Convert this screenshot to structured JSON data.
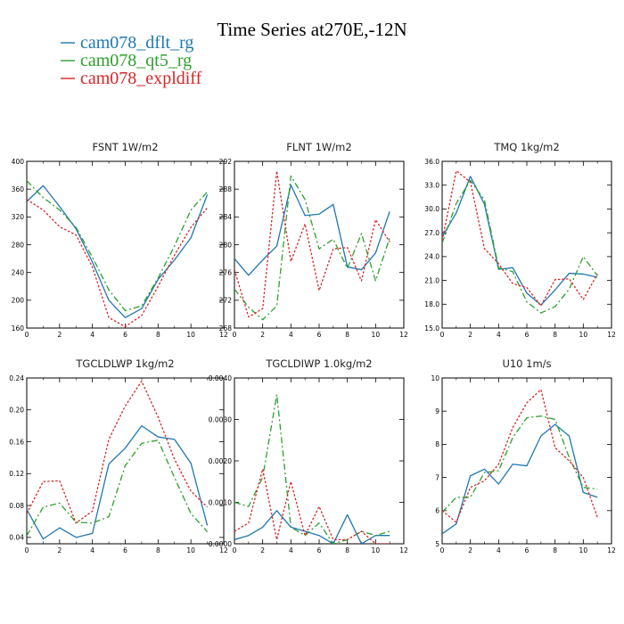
{
  "figure": {
    "title": "Time Series at270E,-12N",
    "legend": [
      {
        "name": "cam078_dflt_rg",
        "color": "#1f77b4",
        "dash": ""
      },
      {
        "name": "cam078_qt5_rg",
        "color": "#2ca02c",
        "dash": "7,3,2,3"
      },
      {
        "name": "cam078_expldiff",
        "color": "#d62728",
        "dash": "2.5,2"
      }
    ]
  },
  "chart_data": [
    {
      "type": "line",
      "title": "FSNT   1W/m2",
      "x": [
        0,
        1,
        2,
        3,
        4,
        5,
        6,
        7,
        8,
        9,
        10,
        11
      ],
      "xlim": [
        0,
        12
      ],
      "xticks": [
        0,
        2,
        4,
        6,
        8,
        10,
        12
      ],
      "ylim": [
        160,
        400
      ],
      "yticks": [
        160,
        200,
        240,
        280,
        320,
        360,
        400
      ],
      "ytick_labels": [
        "160",
        "200",
        "240",
        "280",
        "320",
        "360",
        "400"
      ],
      "series": [
        {
          "name": "cam078_dflt_rg",
          "values": [
            342,
            365,
            335,
            303,
            255,
            200,
            175,
            188,
            230,
            258,
            290,
            352
          ]
        },
        {
          "name": "cam078_qt5_rg",
          "values": [
            372,
            348,
            330,
            305,
            262,
            215,
            185,
            192,
            232,
            278,
            330,
            356
          ]
        },
        {
          "name": "cam078_expldiff",
          "values": [
            345,
            330,
            306,
            294,
            248,
            175,
            162,
            178,
            220,
            265,
            305,
            333
          ]
        }
      ]
    },
    {
      "type": "line",
      "title": "FLNT   1W/m2",
      "x": [
        0,
        1,
        2,
        3,
        4,
        5,
        6,
        7,
        8,
        9,
        10,
        11
      ],
      "xlim": [
        0,
        12
      ],
      "xticks": [
        0,
        2,
        4,
        6,
        8,
        10,
        12
      ],
      "ylim": [
        268,
        292
      ],
      "yticks": [
        268,
        272,
        276,
        280,
        284,
        288,
        292
      ],
      "ytick_labels": [
        "268",
        "272",
        "276",
        "280",
        "284",
        "288",
        "292"
      ],
      "series": [
        {
          "name": "cam078_dflt_rg",
          "values": [
            278,
            275.6,
            277.8,
            279.8,
            288.6,
            284.2,
            284.4,
            285.8,
            276.8,
            276.4,
            278.8,
            284.8
          ]
        },
        {
          "name": "cam078_qt5_rg",
          "values": [
            273.6,
            271,
            269.2,
            271.2,
            289.9,
            286.5,
            279.4,
            280.8,
            276.6,
            281.6,
            274.8,
            281
          ]
        },
        {
          "name": "cam078_expldiff",
          "values": [
            276.4,
            269.6,
            270.8,
            290.6,
            277.6,
            283,
            273.4,
            279.4,
            279.6,
            274.8,
            283.6,
            280.4
          ]
        }
      ]
    },
    {
      "type": "line",
      "title": "TMQ   1kg/m2",
      "x": [
        0,
        1,
        2,
        3,
        4,
        5,
        6,
        7,
        8,
        9,
        10,
        11
      ],
      "xlim": [
        0,
        12
      ],
      "xticks": [
        0,
        2,
        4,
        6,
        8,
        10,
        12
      ],
      "ylim": [
        15,
        36
      ],
      "yticks": [
        15,
        18,
        21,
        24,
        27,
        30,
        33,
        36
      ],
      "ytick_labels": [
        "15.0",
        "18.0",
        "21.0",
        "24.0",
        "27.0",
        "30.0",
        "33.0",
        "36.0"
      ],
      "series": [
        {
          "name": "cam078_dflt_rg",
          "values": [
            26.5,
            29.5,
            34.1,
            30.6,
            22.4,
            22.6,
            19.4,
            17.9,
            19.8,
            21.9,
            21.8,
            21.4
          ]
        },
        {
          "name": "cam078_qt5_rg",
          "values": [
            25.7,
            30.7,
            33.6,
            31.1,
            22.6,
            22.1,
            18.3,
            16.9,
            17.7,
            19.9,
            24,
            21.6
          ]
        },
        {
          "name": "cam078_expldiff",
          "values": [
            26,
            34.8,
            33.4,
            25,
            23.1,
            20.6,
            20.1,
            17.8,
            21.1,
            21.2,
            18.6,
            21.8
          ]
        }
      ]
    },
    {
      "type": "line",
      "title": "TGCLDLWP   1kg/m2",
      "x": [
        0,
        1,
        2,
        3,
        4,
        5,
        6,
        7,
        8,
        9,
        10,
        11
      ],
      "xlim": [
        0,
        12
      ],
      "xticks": [
        0,
        2,
        4,
        6,
        8,
        10,
        12
      ],
      "ylim": [
        0.032,
        0.24
      ],
      "yticks": [
        0.04,
        0.08,
        0.12,
        0.16,
        0.2,
        0.24
      ],
      "ytick_labels": [
        "0.04",
        "0.08",
        "0.12",
        "0.16",
        "0.20",
        "0.24"
      ],
      "series": [
        {
          "name": "cam078_dflt_rg",
          "values": [
            0.075,
            0.038,
            0.052,
            0.04,
            0.045,
            0.132,
            0.152,
            0.18,
            0.166,
            0.163,
            0.133,
            0.055
          ]
        },
        {
          "name": "cam078_qt5_rg",
          "values": [
            0.042,
            0.078,
            0.083,
            0.059,
            0.058,
            0.066,
            0.13,
            0.158,
            0.162,
            0.115,
            0.07,
            0.047
          ]
        },
        {
          "name": "cam078_expldiff",
          "values": [
            0.07,
            0.11,
            0.111,
            0.058,
            0.073,
            0.163,
            0.205,
            0.236,
            0.191,
            0.138,
            0.098,
            0.078
          ]
        }
      ]
    },
    {
      "type": "line",
      "title": "TGCLDIWP   1.0kg/m2",
      "x": [
        0,
        1,
        2,
        3,
        4,
        5,
        6,
        7,
        8,
        9,
        10,
        11
      ],
      "xlim": [
        0,
        12
      ],
      "xticks": [
        0,
        2,
        4,
        6,
        8,
        10,
        12
      ],
      "ylim": [
        0,
        0.004
      ],
      "yticks": [
        0,
        0.001,
        0.002,
        0.003,
        0.004
      ],
      "ytick_labels": [
        "0.0000",
        "0.0010",
        "0.0020",
        "0.0030",
        "0.0040"
      ],
      "series": [
        {
          "name": "cam078_dflt_rg",
          "values": [
            0.0001,
            0.0002,
            0.0004,
            0.0008,
            0.0004,
            0.0003,
            0.0002,
            0,
            0.0007,
            0,
            0.0002,
            0.0002
          ]
        },
        {
          "name": "cam078_qt5_rg",
          "values": [
            0.001,
            0.0009,
            0.0016,
            0.0036,
            0.0004,
            0.0002,
            0.0005,
            0,
            0.0001,
            0.0003,
            0.0002,
            0.0003
          ]
        },
        {
          "name": "cam078_expldiff",
          "values": [
            0.0003,
            0.0005,
            0.0018,
            0.0001,
            0.0015,
            0.0002,
            0.0009,
            0.0001,
            0.0001,
            0.0003,
            0,
            0
          ]
        }
      ]
    },
    {
      "type": "line",
      "title": "U10   1m/s",
      "x": [
        0,
        1,
        2,
        3,
        4,
        5,
        6,
        7,
        8,
        9,
        10,
        11
      ],
      "xlim": [
        0,
        12
      ],
      "xticks": [
        0,
        2,
        4,
        6,
        8,
        10,
        12
      ],
      "ylim": [
        5,
        10
      ],
      "yticks": [
        5,
        6,
        7,
        8,
        9,
        10
      ],
      "ytick_labels": [
        "5",
        "6",
        "7",
        "8",
        "9",
        "10"
      ],
      "series": [
        {
          "name": "cam078_dflt_rg",
          "values": [
            5.3,
            5.6,
            7.05,
            7.25,
            6.8,
            7.4,
            7.35,
            8.25,
            8.6,
            8.25,
            6.55,
            6.4
          ]
        },
        {
          "name": "cam078_qt5_rg",
          "values": [
            5.95,
            6.4,
            6.4,
            7.15,
            7.2,
            8.2,
            8.8,
            8.85,
            8.75,
            7.6,
            6.7,
            6.65
          ]
        },
        {
          "name": "cam078_expldiff",
          "values": [
            6,
            5.65,
            6.7,
            6.9,
            7.4,
            8.5,
            9.25,
            9.65,
            7.9,
            7.5,
            7,
            5.8
          ]
        }
      ]
    }
  ]
}
